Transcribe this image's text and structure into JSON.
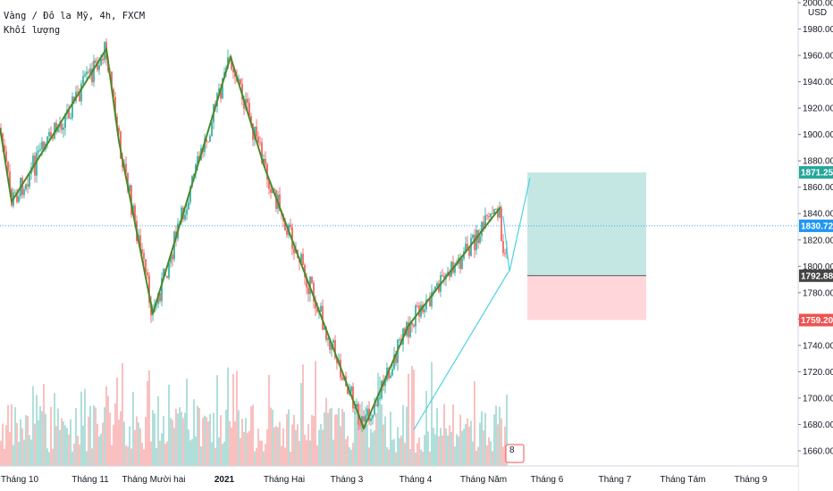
{
  "header": {
    "symbol_line": "Vàng / Đô la Mỹ, 4h, FXCM",
    "volume_label": "Khối lượng"
  },
  "chart_data": {
    "type": "candlestick",
    "title": "Vàng / Đô la Mỹ, 4h, FXCM",
    "currency": "USD",
    "ylim": [
      1650,
      2000
    ],
    "y_ticks": [
      "1660.00",
      "1680.00",
      "1700.00",
      "1720.00",
      "1740.00",
      "1760.00",
      "1780.00",
      "1800.00",
      "1820.00",
      "1840.00",
      "1860.00",
      "1880.00",
      "1900.00",
      "1920.00",
      "1940.00",
      "1960.00",
      "1980.00",
      "2000.00"
    ],
    "x_ticks": [
      "Tháng 10",
      "Tháng 11",
      "Tháng Mười hai",
      "2021",
      "Tháng Hai",
      "Tháng 3",
      "Tháng 4",
      "Tháng Năm",
      "Tháng 6",
      "Tháng 7",
      "Tháng Tám",
      "Tháng 9"
    ],
    "price_labels": [
      {
        "value": 1871.25,
        "text": "1871.25",
        "color": "#26a69a"
      },
      {
        "value": 1830.72,
        "text": "1830.72",
        "color": "#2196f3"
      },
      {
        "value": 1792.88,
        "text": "1792.88",
        "color": "#444444"
      },
      {
        "value": 1759.2,
        "text": "1759.20",
        "color": "#ef5350"
      }
    ],
    "current_price": 1830.72,
    "zigzag": [
      [
        "Tháng 10",
        1905
      ],
      [
        "Tháng 10",
        1849
      ],
      [
        "Tháng 11",
        1965
      ],
      [
        "Tháng 11",
        1895
      ],
      [
        "Tháng Mười hai",
        1764
      ],
      [
        "2021",
        1959
      ],
      [
        "Tháng Hai",
        1875
      ],
      [
        "Tháng 3",
        1677
      ],
      [
        "Tháng 4",
        1755
      ],
      [
        "Tháng Năm",
        1845
      ]
    ],
    "trendline": {
      "from": [
        1676,
        "Tháng 4"
      ],
      "to": [
        1796,
        "Tháng Năm"
      ]
    },
    "projection": [
      1796,
      1867
    ],
    "position": {
      "target": 1871.25,
      "entry": 1792.88,
      "stop": 1759.2
    },
    "colors": {
      "up": "#26a69a",
      "down": "#ef5350",
      "zigzag": "#4a8a2a",
      "trendline": "#4dd0e1",
      "profit_zone": "#b2dfdb",
      "loss_zone": "#ffcdd2",
      "volume_up": "#26a69a",
      "volume_down": "#ef5350",
      "current_line": "#2196f3"
    },
    "volume_badge": "8"
  }
}
